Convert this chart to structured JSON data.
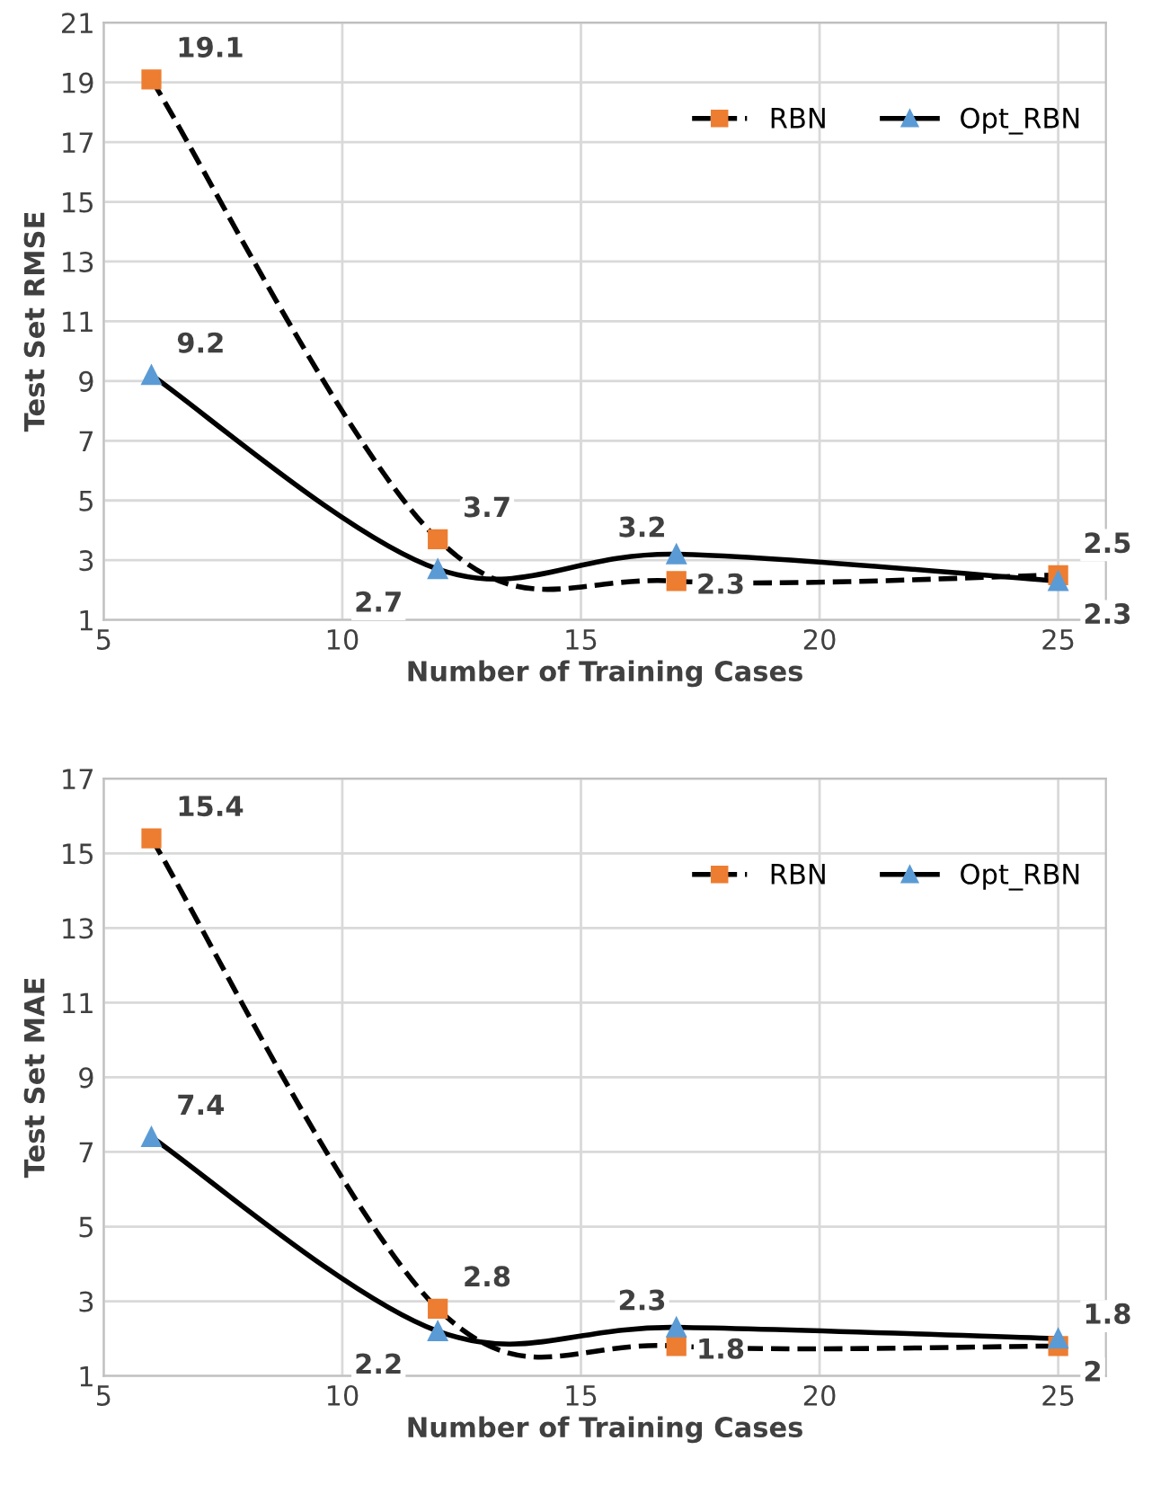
{
  "chart_data": [
    {
      "type": "line",
      "xlabel": "Number of Training Cases",
      "ylabel": "Test Set RMSE",
      "x": [
        6,
        12,
        17,
        25
      ],
      "xlim": [
        5,
        26
      ],
      "xticks": [
        5,
        10,
        15,
        20,
        25
      ],
      "ylim": [
        1,
        21
      ],
      "yticks": [
        1,
        3,
        5,
        7,
        9,
        11,
        13,
        15,
        17,
        19,
        21
      ],
      "grid": true,
      "legend": "top right",
      "series": [
        {
          "name": "RBN",
          "color": "#000000",
          "colors": [
            "#ed7d31",
            "#ed7d31",
            "#ed7d31",
            "#ed7d31"
          ],
          "values": [
            19.1,
            3.7,
            2.3,
            2.5
          ],
          "value_labels": [
            "19.1",
            "3.7",
            "2.3",
            "2.5"
          ],
          "marker": "square",
          "line_style": "dashed"
        },
        {
          "name": "Opt_RBN",
          "color": "#000000",
          "colors": [
            "#5b9bd5",
            "#5b9bd5",
            "#5b9bd5",
            "#5b9bd5"
          ],
          "values": [
            9.2,
            2.7,
            3.2,
            2.3
          ],
          "value_labels": [
            "9.2",
            "2.7",
            "3.2",
            "2.3"
          ],
          "marker": "triangle",
          "line_style": "solid"
        }
      ]
    },
    {
      "type": "line",
      "xlabel": "Number of Training Cases",
      "ylabel": "Test Set MAE",
      "x": [
        6,
        12,
        17,
        25
      ],
      "xlim": [
        5,
        26
      ],
      "xticks": [
        5,
        10,
        15,
        20,
        25
      ],
      "ylim": [
        1,
        17
      ],
      "yticks": [
        1,
        3,
        5,
        7,
        9,
        11,
        13,
        15,
        17
      ],
      "grid": true,
      "legend": "top right",
      "series": [
        {
          "name": "RBN",
          "color": "#000000",
          "colors": [
            "#ed7d31",
            "#ed7d31",
            "#ed7d31",
            "#ed7d31"
          ],
          "values": [
            15.4,
            2.8,
            1.8,
            1.8
          ],
          "value_labels": [
            "15.4",
            "2.8",
            "1.8",
            "1.8"
          ],
          "marker": "square",
          "line_style": "dashed"
        },
        {
          "name": "Opt_RBN",
          "color": "#000000",
          "colors": [
            "#5b9bd5",
            "#5b9bd5",
            "#5b9bd5",
            "#5b9bd5"
          ],
          "values": [
            7.4,
            2.2,
            2.3,
            2.0
          ],
          "value_labels": [
            "7.4",
            "2.2",
            "2.3",
            "2"
          ],
          "marker": "triangle",
          "line_style": "solid"
        }
      ]
    }
  ]
}
